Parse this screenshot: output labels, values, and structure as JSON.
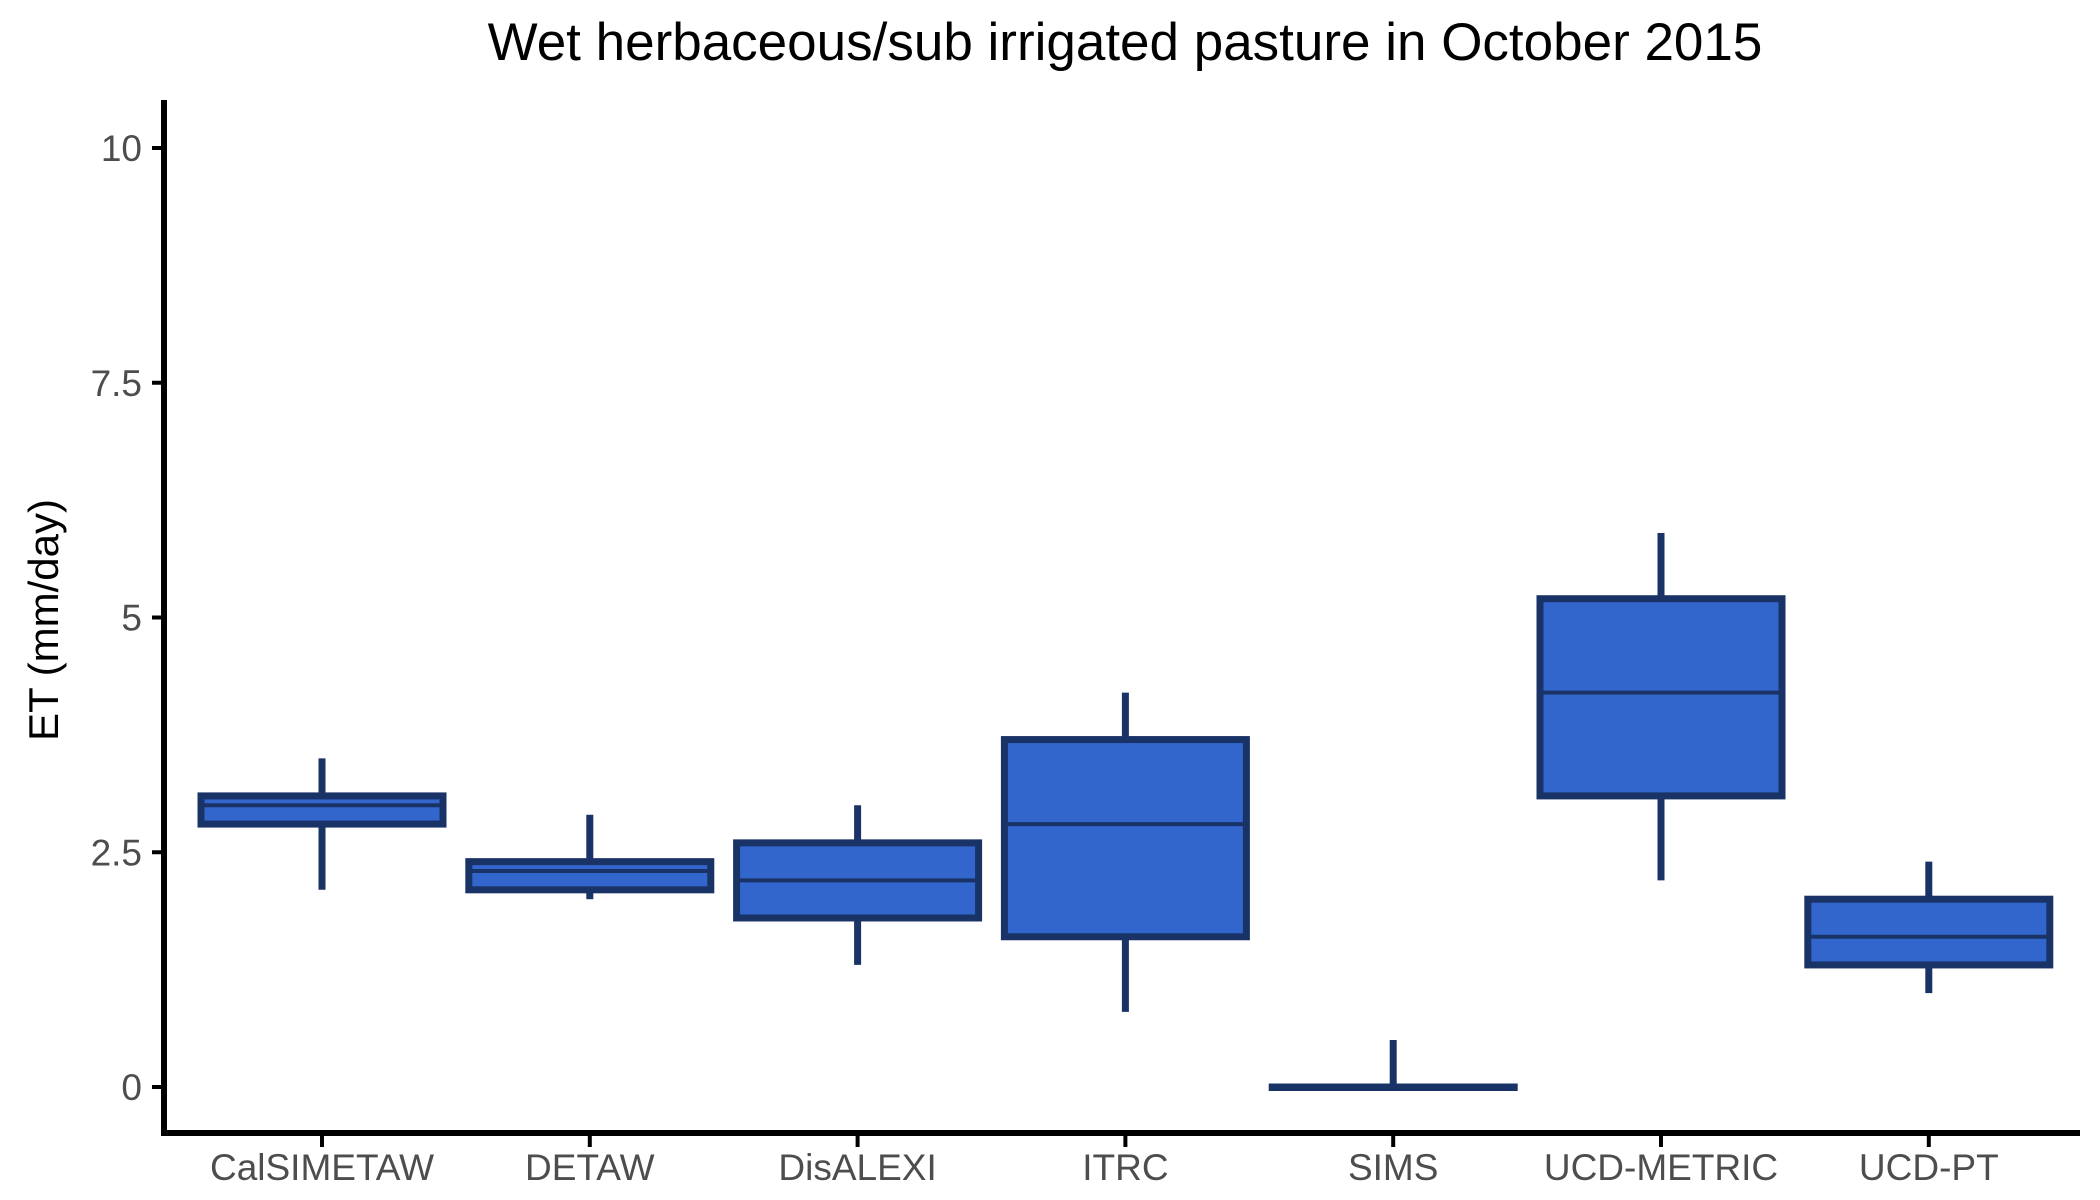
{
  "chart_data": {
    "type": "box",
    "title": "Wet herbaceous/sub irrigated pasture in October 2015",
    "xlabel": "",
    "ylabel": "ET (mm/day)",
    "ylim": [
      -0.5,
      10.5
    ],
    "yticks": [
      0,
      2.5,
      5,
      7.5,
      10
    ],
    "ytick_labels": [
      "0",
      "2.5",
      "5",
      "7.5",
      "10"
    ],
    "grid": false,
    "legend": "none",
    "categories": [
      "CalSIMETAW",
      "DETAW",
      "DisALEXI",
      "ITRC",
      "SIMS",
      "UCD-METRIC",
      "UCD-PT"
    ],
    "boxes": [
      {
        "min": 2.1,
        "q1": 2.8,
        "median": 3.0,
        "q3": 3.1,
        "max": 3.5
      },
      {
        "min": 2.0,
        "q1": 2.1,
        "median": 2.3,
        "q3": 2.4,
        "max": 2.9
      },
      {
        "min": 1.3,
        "q1": 1.8,
        "median": 2.2,
        "q3": 2.6,
        "max": 3.0
      },
      {
        "min": 0.8,
        "q1": 1.6,
        "median": 2.8,
        "q3": 3.7,
        "max": 4.2
      },
      {
        "min": 0.0,
        "q1": 0.0,
        "median": 0.0,
        "q3": 0.0,
        "max": 0.5
      },
      {
        "min": 2.2,
        "q1": 3.1,
        "median": 4.2,
        "q3": 5.2,
        "max": 5.9
      },
      {
        "min": 1.0,
        "q1": 1.3,
        "median": 1.6,
        "q3": 2.0,
        "max": 2.4
      }
    ],
    "colors": {
      "fill": "#3366cc",
      "stroke": "#1a3366",
      "axis": "#000000",
      "tick_label": "#4d4d4d"
    }
  }
}
